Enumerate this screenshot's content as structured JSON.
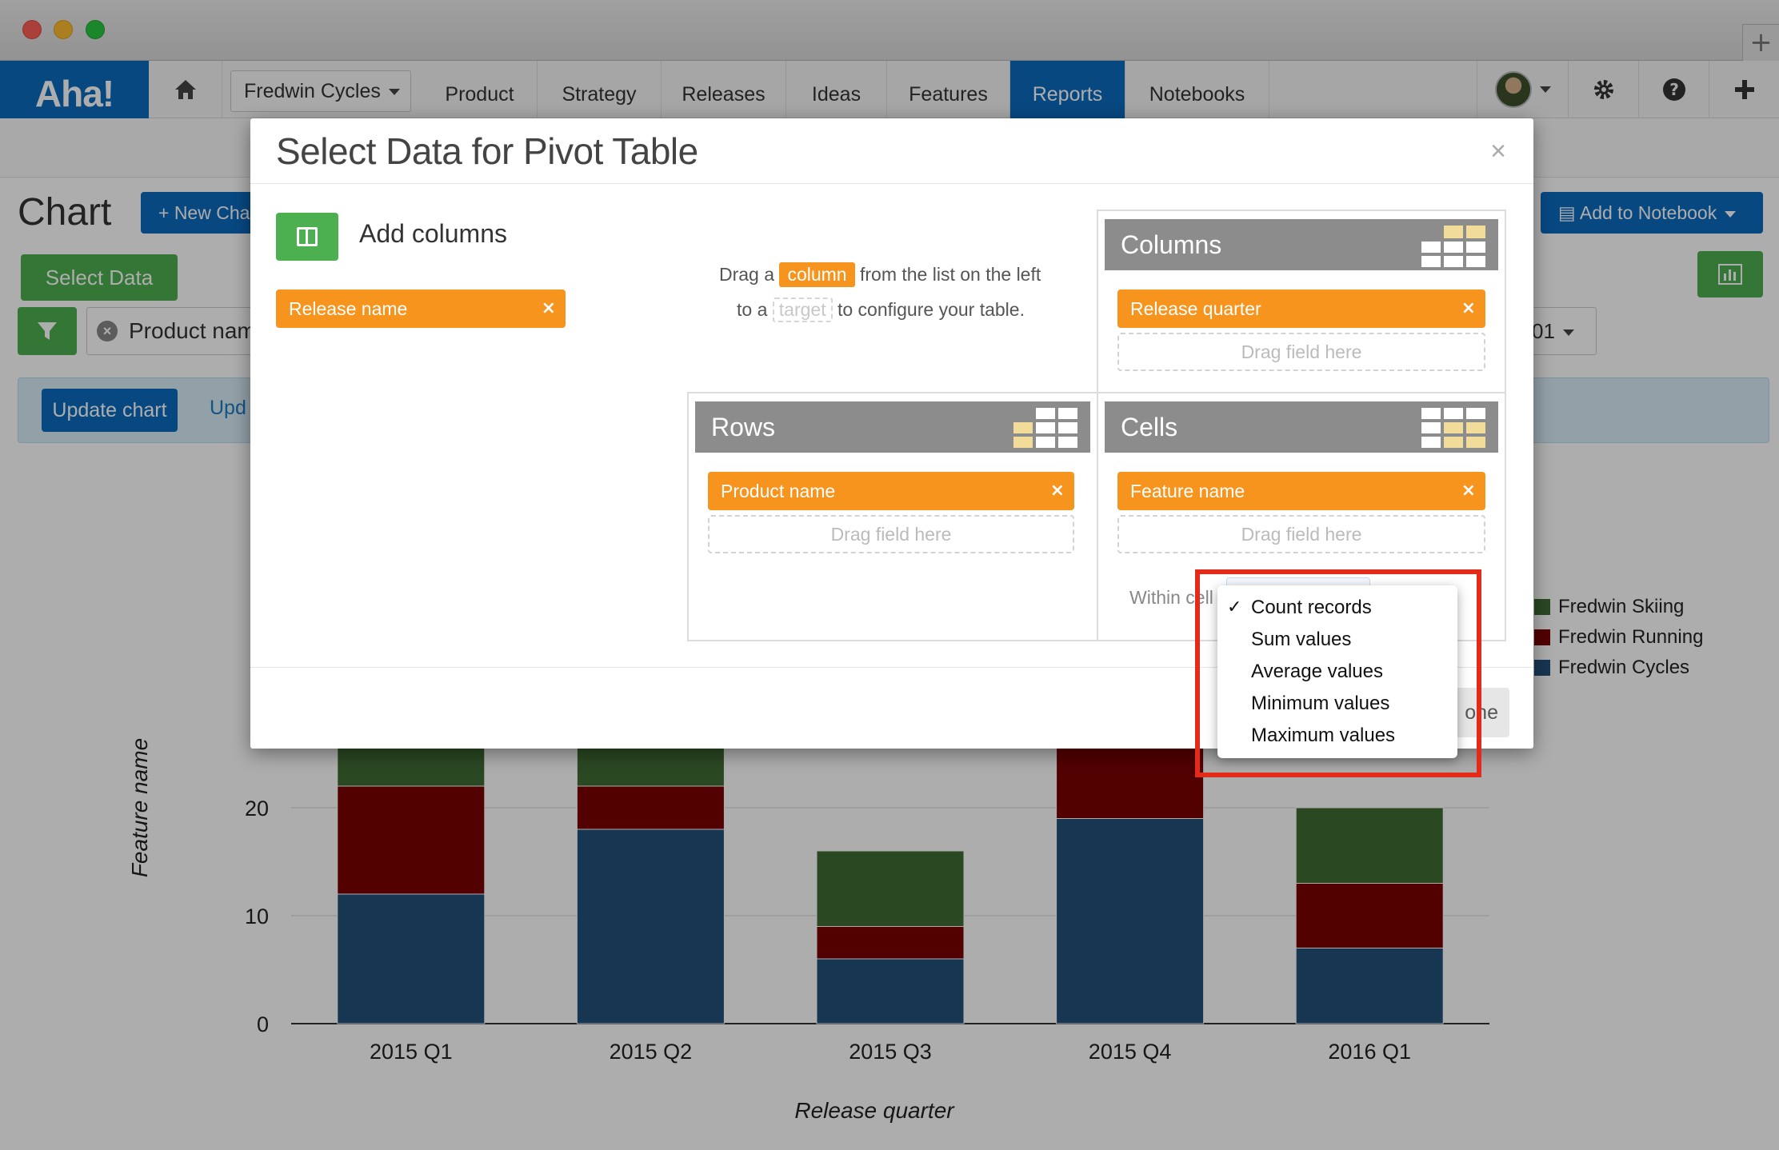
{
  "window": {
    "new_tab_symbol": "+"
  },
  "nav": {
    "logo": "Aha!",
    "workspace": "Fredwin Cycles",
    "tabs": [
      "Product",
      "Strategy",
      "Releases",
      "Ideas",
      "Features",
      "Reports",
      "Notebooks"
    ],
    "active_tab": "Reports",
    "icons": [
      "home-icon",
      "gear-icon",
      "help-icon",
      "plus-icon"
    ]
  },
  "page": {
    "title": "Chart",
    "new_chart_label": "+ New Cha",
    "add_to_notebook_label": "Add to Notebook",
    "select_data_label": "Select Data",
    "filter_label": "Product nam",
    "update_chart_label": "Update chart",
    "update_link": "Upd",
    "date_value": "01"
  },
  "chart_data": {
    "type": "bar",
    "stacked": true,
    "categories": [
      "2015 Q1",
      "2015 Q2",
      "2015 Q3",
      "2015 Q4",
      "2016 Q1"
    ],
    "series": [
      {
        "name": "Fredwin Cycles",
        "color": "#23507a",
        "values": [
          12,
          18,
          6,
          19,
          7
        ]
      },
      {
        "name": "Fredwin Running",
        "color": "#7a0000",
        "values": [
          10,
          4,
          3,
          12,
          6
        ]
      },
      {
        "name": "Fredwin Skiing",
        "color": "#3f6b33",
        "values": [
          14,
          14,
          7,
          9,
          7
        ]
      }
    ],
    "legend_order": [
      "Fredwin Skiing",
      "Fredwin Running",
      "Fredwin Cycles"
    ],
    "xlabel": "Release quarter",
    "ylabel": "Feature name",
    "ylim": [
      0,
      40
    ],
    "ticks": [
      0,
      10,
      20,
      30,
      40
    ],
    "visible_tick_labels": [
      "0",
      "10",
      "20"
    ],
    "grid": true,
    "legend_position": "right"
  },
  "modal": {
    "title": "Select Data for Pivot Table",
    "close_symbol": "×",
    "add_columns_label": "Add columns",
    "available_fields": [
      "Release name"
    ],
    "hint": {
      "part1": "Drag a",
      "column_word": "column",
      "part2": "from the list on the left",
      "part3": "to a",
      "target_word": "target",
      "part4": "to configure your table."
    },
    "columns": {
      "title": "Columns",
      "fields": [
        "Release quarter"
      ],
      "drop_text": "Drag field here"
    },
    "rows": {
      "title": "Rows",
      "fields": [
        "Product name"
      ],
      "drop_text": "Drag field here"
    },
    "cells": {
      "title": "Cells",
      "fields": [
        "Feature name"
      ],
      "drop_text": "Drag field here",
      "within_label": "Within cell"
    },
    "remove_symbol": "×",
    "done_label": "one"
  },
  "dropdown": {
    "selected": "Count records",
    "check_symbol": "✓",
    "options": [
      "Count records",
      "Sum values",
      "Average values",
      "Minimum values",
      "Maximum values"
    ]
  },
  "colors": {
    "brand_blue": "#0b6bbf",
    "pill_orange": "#f7941d",
    "panel_gray": "#8c8c8c",
    "highlight_red": "#e32b1c"
  }
}
